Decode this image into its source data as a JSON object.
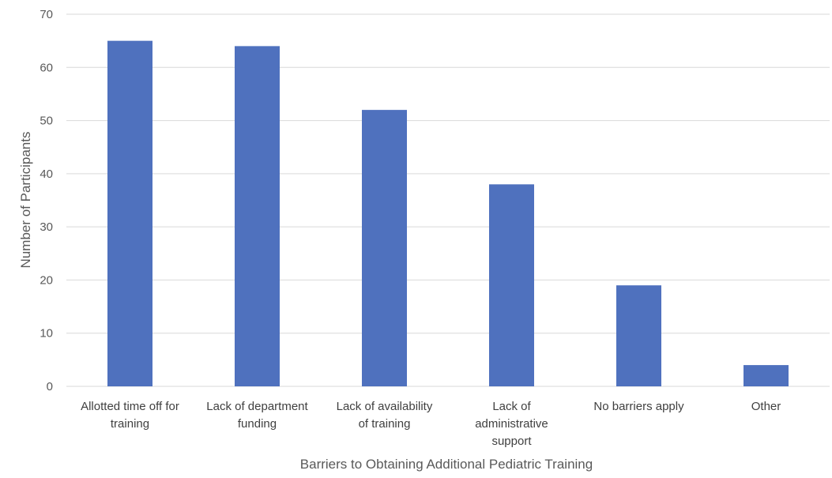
{
  "chart_data": {
    "type": "bar",
    "title": "",
    "xlabel": "Barriers to Obtaining Additional Pediatric Training",
    "ylabel": "Number of Participants",
    "ylim": [
      0,
      70
    ],
    "yticks": [
      0,
      10,
      20,
      30,
      40,
      50,
      60,
      70
    ],
    "grid": true,
    "categories": [
      [
        "Allotted time off for",
        "training"
      ],
      [
        "Lack of department",
        "funding"
      ],
      [
        "Lack of availability",
        "of training"
      ],
      [
        "Lack of",
        "administrative",
        "support"
      ],
      [
        "No barriers apply"
      ],
      [
        "Other"
      ]
    ],
    "values": [
      65,
      64,
      52,
      38,
      19,
      4
    ],
    "colors": {
      "bar": "#4f71be",
      "grid": "#d9d9d9",
      "text": "#595959"
    }
  }
}
